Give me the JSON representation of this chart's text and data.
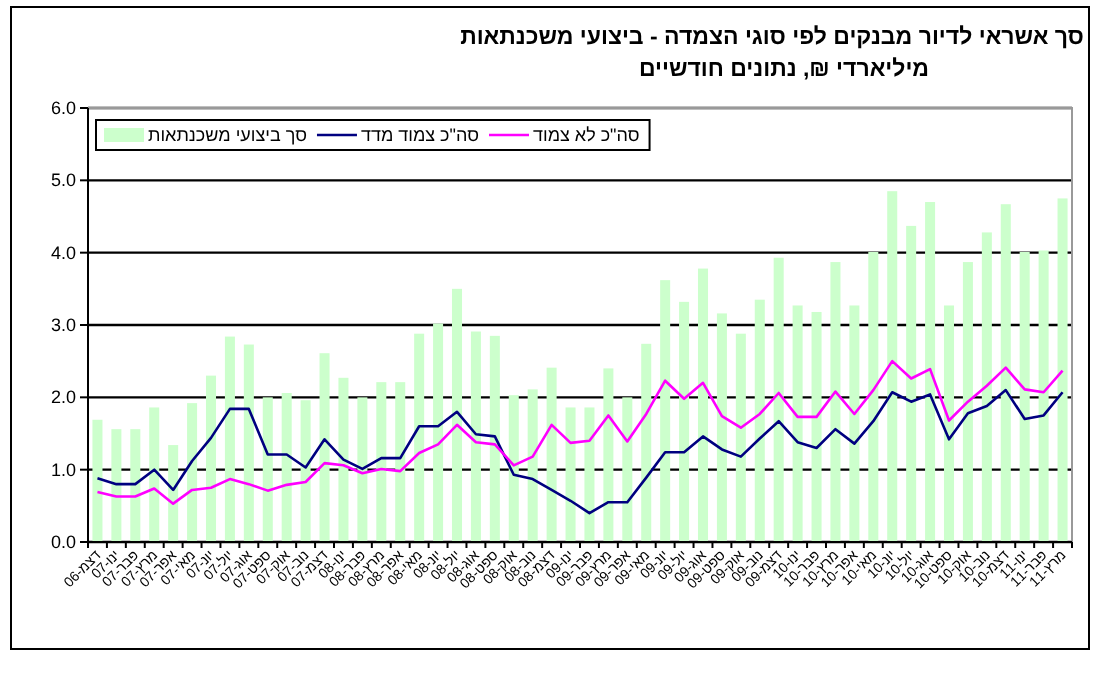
{
  "chart_data": {
    "type": "bar",
    "title": "סך אשראי לדיור מבנקים לפי סוגי הצמדה - ביצועי משכנתאות",
    "subtitle": "מיליארדי ₪, נתונים חודשיים",
    "categories": [
      "דצמ-06",
      "ינו-07",
      "פבר-07",
      "מרץ-07",
      "אפר-07",
      "מאי-07",
      "יונ-07",
      "יול-07",
      "אוג-07",
      "ספט-07",
      "אוק-07",
      "נוב-07",
      "דצמ-07",
      "ינו-08",
      "פבר-08",
      "מרץ-08",
      "אפר-08",
      "מאי-08",
      "יונ-08",
      "יול-08",
      "אוג-08",
      "ספט-08",
      "אוק-08",
      "נוב-08",
      "דצמ-08",
      "ינו-09",
      "פבר-09",
      "מרץ-09",
      "אפר-09",
      "מאי-09",
      "יונ-09",
      "יול-09",
      "אוג-09",
      "ספט-09",
      "אוק-09",
      "נוב-09",
      "דצמ-09",
      "ינו-10",
      "פבר-10",
      "מרץ-10",
      "אפר-10",
      "מאי-10",
      "יונ-10",
      "יול-10",
      "אוג-10",
      "ספט-10",
      "אוק-10",
      "נוב-10",
      "דצמ-10",
      "ינו-11",
      "פבר-11",
      "מרץ-11"
    ],
    "series": [
      {
        "name": "סך ביצועי משכנתאות",
        "color": "#ccffcc",
        "values": [
          1.69,
          1.56,
          1.56,
          1.86,
          1.34,
          1.92,
          2.3,
          2.84,
          2.73,
          2.0,
          2.06,
          1.96,
          2.61,
          2.27,
          2.0,
          2.21,
          2.21,
          2.88,
          3.02,
          3.5,
          2.91,
          2.85,
          2.03,
          2.11,
          2.41,
          1.86,
          1.86,
          2.4,
          2.0,
          2.74,
          3.62,
          3.32,
          3.78,
          3.16,
          2.88,
          3.35,
          3.93,
          3.27,
          3.18,
          3.87,
          3.27,
          4.01,
          4.85,
          4.37,
          4.7,
          3.27,
          3.87,
          4.28,
          4.67,
          4.01,
          4.03,
          4.75
        ]
      },
      {
        "name": "סה\"כ צמוד מדד",
        "type": "line",
        "color": "#000080",
        "values": [
          0.88,
          0.8,
          0.8,
          1.0,
          0.72,
          1.12,
          1.44,
          1.84,
          1.84,
          1.21,
          1.21,
          1.03,
          1.42,
          1.14,
          1.01,
          1.16,
          1.16,
          1.6,
          1.6,
          1.8,
          1.49,
          1.46,
          0.93,
          0.87,
          0.72,
          0.57,
          0.4,
          0.55,
          0.55,
          0.89,
          1.24,
          1.24,
          1.46,
          1.28,
          1.18,
          1.43,
          1.67,
          1.38,
          1.3,
          1.56,
          1.36,
          1.67,
          2.07,
          1.94,
          2.04,
          1.42,
          1.78,
          1.88,
          2.1,
          1.7,
          1.75,
          2.07
        ]
      },
      {
        "name": "סה\"כ לא צמוד",
        "type": "line",
        "color": "#ff00ff",
        "values": [
          0.69,
          0.63,
          0.63,
          0.74,
          0.53,
          0.72,
          0.75,
          0.87,
          0.8,
          0.71,
          0.79,
          0.83,
          1.09,
          1.06,
          0.95,
          1.01,
          0.98,
          1.23,
          1.35,
          1.62,
          1.38,
          1.35,
          1.06,
          1.18,
          1.62,
          1.37,
          1.4,
          1.75,
          1.39,
          1.77,
          2.23,
          1.98,
          2.2,
          1.74,
          1.58,
          1.77,
          2.06,
          1.73,
          1.73,
          2.08,
          1.77,
          2.1,
          2.5,
          2.26,
          2.39,
          1.68,
          1.94,
          2.16,
          2.41,
          2.11,
          2.07,
          2.37
        ]
      }
    ],
    "ylim": [
      0,
      6
    ],
    "yticks": [
      {
        "value": 0,
        "label": "0.0"
      },
      {
        "value": 1,
        "label": "1.0"
      },
      {
        "value": 2,
        "label": "2.0"
      },
      {
        "value": 3,
        "label": "3.0"
      },
      {
        "value": 4,
        "label": "4.0"
      },
      {
        "value": 5,
        "label": "5.0"
      },
      {
        "value": 6,
        "label": "6.0"
      }
    ],
    "grid": "y",
    "legend": "top left",
    "marker": "none",
    "line_style": "solid"
  }
}
